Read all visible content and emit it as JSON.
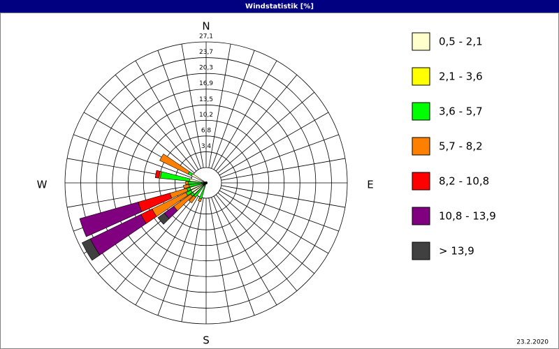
{
  "chart_data": {
    "type": "windrose",
    "title": "Windstatistik [%]",
    "annotation": "23.2.2020",
    "categories": [
      "N",
      null,
      null,
      null,
      null,
      null,
      null,
      null,
      null,
      "E",
      null,
      null,
      null,
      null,
      null,
      null,
      null,
      null,
      "S",
      null,
      null,
      null,
      null,
      null,
      null,
      null,
      null,
      "W",
      null,
      null,
      null,
      null,
      null,
      null,
      null,
      null
    ],
    "rlim": [
      0,
      27.1
    ],
    "rticks": [
      {
        "value": 3.4,
        "label": "3,4"
      },
      {
        "value": 6.8,
        "label": "6,8"
      },
      {
        "value": 10.2,
        "label": "10,2"
      },
      {
        "value": 13.5,
        "label": "13,5"
      },
      {
        "value": 16.9,
        "label": "16,9"
      },
      {
        "value": 20.3,
        "label": "20,3"
      },
      {
        "value": 23.7,
        "label": "23,7"
      },
      {
        "value": 27.1,
        "label": "27,1"
      }
    ],
    "series": [
      {
        "name": "0,5 - 2,1",
        "color": "#ffffcc",
        "values": [
          0,
          0,
          0,
          0,
          0,
          0,
          0,
          0,
          0,
          0,
          0,
          0,
          0,
          0,
          0,
          0,
          0,
          0,
          0,
          0,
          0,
          0,
          0,
          0.2,
          0.3,
          0.3,
          0,
          0,
          0.3,
          0,
          0.2,
          0,
          0,
          0,
          0,
          0
        ]
      },
      {
        "name": "2,1 - 3,6",
        "color": "#ffff00",
        "values": [
          0,
          0,
          0,
          0,
          0,
          0,
          0,
          0,
          0,
          0,
          0,
          0,
          0,
          0,
          0,
          0,
          0,
          0,
          0,
          0,
          0,
          0,
          0,
          0,
          0,
          0,
          0,
          0,
          0,
          0,
          0,
          0,
          0,
          0,
          0,
          0
        ]
      },
      {
        "name": "3,6 - 5,7",
        "color": "#00ff00",
        "values": [
          0,
          0,
          0,
          0,
          0,
          0,
          0,
          0,
          0,
          0,
          0,
          0,
          0,
          0,
          0,
          0,
          0,
          0,
          0,
          0,
          0.3,
          0,
          0.5,
          0.6,
          1.2,
          0.7,
          0.4,
          0.5,
          6.3,
          0,
          0.8,
          0,
          0,
          0,
          0,
          0
        ]
      },
      {
        "name": "5,7 - 8,2",
        "color": "#ff8000",
        "values": [
          0,
          0,
          0,
          0,
          0,
          0,
          0,
          0,
          0,
          0,
          0,
          0,
          0,
          0,
          0,
          0,
          0,
          0,
          0,
          0,
          0.6,
          0,
          1.5,
          4.5,
          8.1,
          3.8,
          1.2,
          0.6,
          0.3,
          0,
          6.8,
          0,
          0,
          0,
          0,
          0
        ]
      },
      {
        "name": "8,2 - 10,8",
        "color": "#ff0000",
        "values": [
          0,
          0,
          0,
          0,
          0,
          0,
          0,
          0,
          0,
          0,
          0,
          0,
          0,
          0,
          0,
          0,
          0,
          0,
          0,
          0,
          0,
          0,
          0,
          0,
          2.7,
          7.1,
          0,
          0,
          0.8,
          0,
          0,
          0,
          0,
          0,
          0,
          0
        ]
      },
      {
        "name": "10,8 - 13,9",
        "color": "#800080",
        "values": [
          0,
          0,
          0,
          0,
          0,
          0,
          0,
          0,
          0,
          0,
          0,
          0,
          0,
          0,
          0,
          0,
          0,
          0,
          0,
          0,
          0,
          0,
          0,
          2.5,
          12.1,
          13.1,
          0,
          0,
          0,
          0,
          0,
          0,
          0,
          0,
          0,
          0
        ]
      },
      {
        "name": "> 13,9",
        "color": "#404040",
        "values": [
          0,
          0,
          0,
          0,
          0,
          0,
          0,
          0,
          0,
          0,
          0,
          0,
          0,
          0,
          0,
          0,
          0,
          0,
          0,
          0,
          0,
          0,
          0,
          1.7,
          2.0,
          0,
          0,
          0,
          0,
          0,
          0,
          0,
          0,
          0,
          0,
          0
        ]
      }
    ]
  }
}
